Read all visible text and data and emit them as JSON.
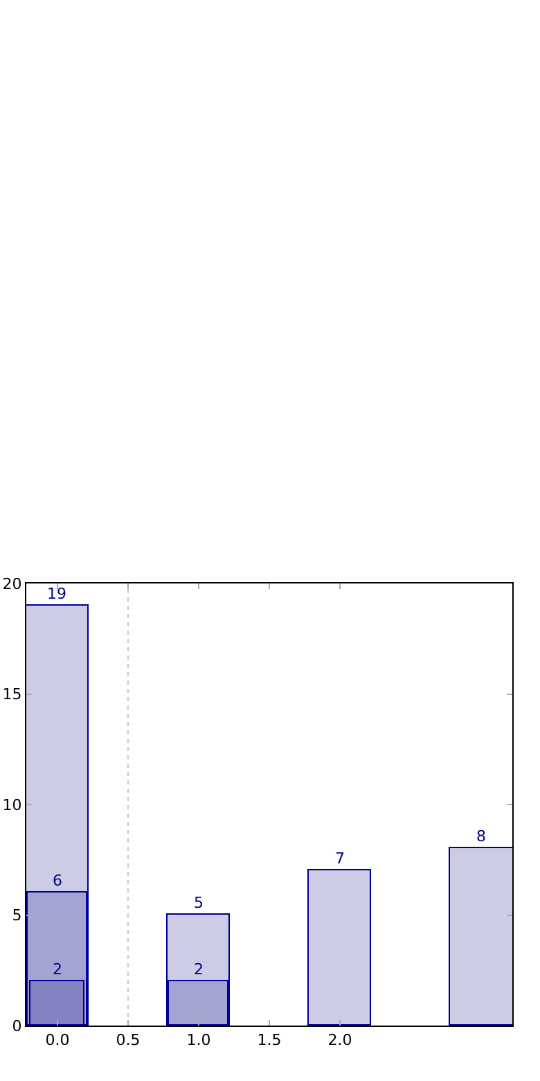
{
  "chart_data": {
    "type": "bar",
    "xlim": [
      -0.22,
      3.22
    ],
    "xticks": [
      {
        "value": 0,
        "label": "0.0"
      },
      {
        "value": 0.5,
        "label": "0.5"
      },
      {
        "value": 1,
        "label": "1.0"
      },
      {
        "value": 1.5,
        "label": "1.5"
      },
      {
        "value": 2,
        "label": "2.0"
      }
    ],
    "ylim": [
      0,
      20
    ],
    "yticks": [
      0,
      5,
      10,
      15,
      20
    ],
    "grid": false,
    "data_labels": true,
    "series": [
      {
        "color": "#cccce4",
        "x": [
          0,
          1,
          2,
          3
        ],
        "values": [
          19,
          5,
          7,
          8
        ]
      },
      {
        "color": "#a4a4d2",
        "x": [
          0,
          1
        ],
        "values": [
          6,
          2
        ]
      },
      {
        "color": "#8282c1",
        "x": [
          0
        ],
        "values": [
          2
        ]
      }
    ],
    "ref_lines": [
      {
        "axis": "x",
        "value": 0.5,
        "color": "#c8c8c8",
        "line_style": "dotted"
      }
    ]
  }
}
